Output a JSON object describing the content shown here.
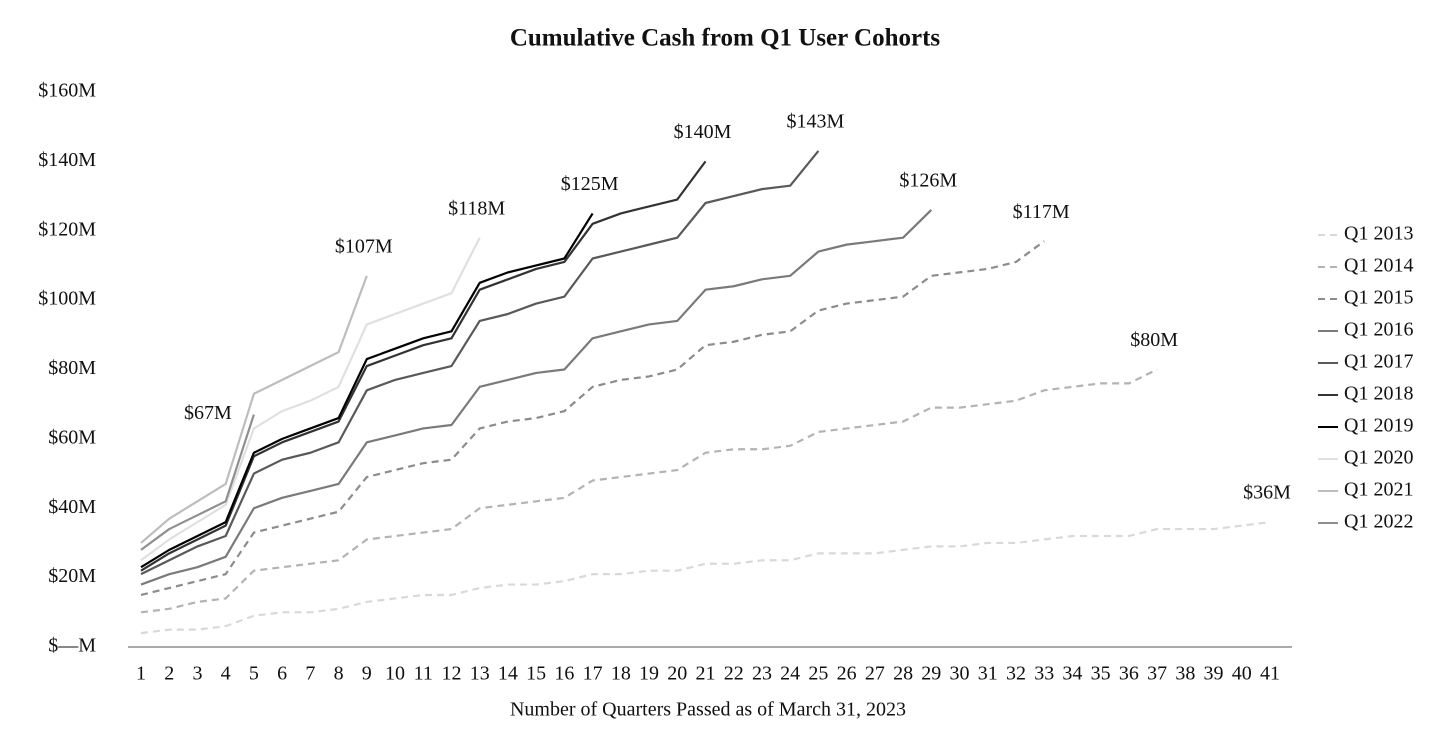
{
  "chart_data": {
    "type": "line",
    "title": "Cumulative Cash from Q1 User Cohorts",
    "x_label": "Number of Quarters Passed as of March 31, 2023",
    "x": [
      1,
      2,
      3,
      4,
      5,
      6,
      7,
      8,
      9,
      10,
      11,
      12,
      13,
      14,
      15,
      16,
      17,
      18,
      19,
      20,
      21,
      22,
      23,
      24,
      25,
      26,
      27,
      28,
      29,
      30,
      31,
      32,
      33,
      34,
      35,
      36,
      37,
      38,
      39,
      40,
      41
    ],
    "xlim": [
      1,
      41
    ],
    "ylim": [
      0,
      160
    ],
    "yticks": [
      {
        "value": 0,
        "label": "$—M"
      },
      {
        "value": 20,
        "label": "$20M"
      },
      {
        "value": 40,
        "label": "$40M"
      },
      {
        "value": 60,
        "label": "$60M"
      },
      {
        "value": 80,
        "label": "$80M"
      },
      {
        "value": 100,
        "label": "$100M"
      },
      {
        "value": 120,
        "label": "$120M"
      },
      {
        "value": 140,
        "label": "$140M"
      },
      {
        "value": 160,
        "label": "$160M"
      }
    ],
    "grid": false,
    "legend": "right",
    "series": [
      {
        "name": "Q1 2013",
        "color": "#d9d9d9",
        "dashed": true,
        "values": [
          4,
          5,
          5,
          6,
          9,
          10,
          10,
          11,
          13,
          14,
          15,
          15,
          17,
          18,
          18,
          19,
          21,
          21,
          22,
          22,
          24,
          24,
          25,
          25,
          27,
          27,
          27,
          28,
          29,
          29,
          30,
          30,
          31,
          32,
          32,
          32,
          34,
          34,
          34,
          35,
          36
        ],
        "value_labels": [
          null,
          null,
          null,
          null,
          null,
          null,
          null,
          null,
          null,
          null,
          null,
          null,
          null,
          null,
          null,
          null,
          null,
          null,
          null,
          null,
          null,
          null,
          null,
          null,
          null,
          null,
          null,
          null,
          null,
          null,
          null,
          null,
          null,
          null,
          null,
          null,
          null,
          null,
          null,
          null,
          "$36M"
        ]
      },
      {
        "name": "Q1 2014",
        "color": "#b3b3b3",
        "dashed": true,
        "values": [
          10,
          11,
          13,
          14,
          22,
          23,
          24,
          25,
          31,
          32,
          33,
          34,
          40,
          41,
          42,
          43,
          48,
          49,
          50,
          51,
          56,
          57,
          57,
          58,
          62,
          63,
          64,
          65,
          69,
          69,
          70,
          71,
          74,
          75,
          76,
          76,
          80,
          null,
          null,
          null,
          null
        ],
        "value_labels": [
          null,
          null,
          null,
          null,
          null,
          null,
          null,
          null,
          null,
          null,
          null,
          null,
          null,
          null,
          null,
          null,
          null,
          null,
          null,
          null,
          null,
          null,
          null,
          null,
          null,
          null,
          null,
          null,
          null,
          null,
          null,
          null,
          null,
          null,
          null,
          null,
          "$80M",
          null,
          null,
          null,
          null
        ]
      },
      {
        "name": "Q1 2015",
        "color": "#8c8c8c",
        "dashed": true,
        "values": [
          15,
          17,
          19,
          21,
          33,
          35,
          37,
          39,
          49,
          51,
          53,
          54,
          63,
          65,
          66,
          68,
          75,
          77,
          78,
          80,
          87,
          88,
          90,
          91,
          97,
          99,
          100,
          101,
          107,
          108,
          109,
          111,
          117,
          null,
          null,
          null,
          null,
          null,
          null,
          null,
          null
        ],
        "value_labels": [
          null,
          null,
          null,
          null,
          null,
          null,
          null,
          null,
          null,
          null,
          null,
          null,
          null,
          null,
          null,
          null,
          null,
          null,
          null,
          null,
          null,
          null,
          null,
          null,
          null,
          null,
          null,
          null,
          null,
          null,
          null,
          null,
          "$117M",
          null,
          null,
          null,
          null,
          null,
          null,
          null,
          null
        ]
      },
      {
        "name": "Q1 2016",
        "color": "#7a7a7a",
        "dashed": false,
        "values": [
          18,
          21,
          23,
          26,
          40,
          43,
          45,
          47,
          59,
          61,
          63,
          64,
          75,
          77,
          79,
          80,
          89,
          91,
          93,
          94,
          103,
          104,
          106,
          107,
          114,
          116,
          117,
          118,
          126,
          null,
          null,
          null,
          null,
          null,
          null,
          null,
          null,
          null,
          null,
          null,
          null
        ],
        "value_labels": [
          null,
          null,
          null,
          null,
          null,
          null,
          null,
          null,
          null,
          null,
          null,
          null,
          null,
          null,
          null,
          null,
          null,
          null,
          null,
          null,
          null,
          null,
          null,
          null,
          null,
          null,
          null,
          null,
          "$126M",
          null,
          null,
          null,
          null,
          null,
          null,
          null,
          null,
          null,
          null,
          null,
          null
        ]
      },
      {
        "name": "Q1 2017",
        "color": "#595959",
        "dashed": false,
        "values": [
          21,
          25,
          29,
          32,
          50,
          54,
          56,
          59,
          74,
          77,
          79,
          81,
          94,
          96,
          99,
          101,
          112,
          114,
          116,
          118,
          128,
          130,
          132,
          133,
          143,
          null,
          null,
          null,
          null,
          null,
          null,
          null,
          null,
          null,
          null,
          null,
          null,
          null,
          null,
          null,
          null
        ],
        "value_labels": [
          null,
          null,
          null,
          null,
          null,
          null,
          null,
          null,
          null,
          null,
          null,
          null,
          null,
          null,
          null,
          null,
          null,
          null,
          null,
          null,
          null,
          null,
          null,
          null,
          "$143M",
          null,
          null,
          null,
          null,
          null,
          null,
          null,
          null,
          null,
          null,
          null,
          null,
          null,
          null,
          null,
          null
        ]
      },
      {
        "name": "Q1 2018",
        "color": "#333333",
        "dashed": false,
        "values": [
          22,
          27,
          31,
          35,
          55,
          59,
          62,
          65,
          81,
          84,
          87,
          89,
          103,
          106,
          109,
          111,
          122,
          125,
          127,
          129,
          140,
          null,
          null,
          null,
          null,
          null,
          null,
          null,
          null,
          null,
          null,
          null,
          null,
          null,
          null,
          null,
          null,
          null,
          null,
          null,
          null
        ],
        "value_labels": [
          null,
          null,
          null,
          null,
          null,
          null,
          null,
          null,
          null,
          null,
          null,
          null,
          null,
          null,
          null,
          null,
          null,
          null,
          null,
          null,
          "$140M",
          null,
          null,
          null,
          null,
          null,
          null,
          null,
          null,
          null,
          null,
          null,
          null,
          null,
          null,
          null,
          null,
          null,
          null,
          null,
          null
        ]
      },
      {
        "name": "Q1 2019",
        "color": "#000000",
        "dashed": false,
        "values": [
          23,
          28,
          32,
          36,
          56,
          60,
          63,
          66,
          83,
          86,
          89,
          91,
          105,
          108,
          110,
          112,
          125,
          null,
          null,
          null,
          null,
          null,
          null,
          null,
          null,
          null,
          null,
          null,
          null,
          null,
          null,
          null,
          null,
          null,
          null,
          null,
          null,
          null,
          null,
          null,
          null
        ],
        "value_labels": [
          null,
          null,
          null,
          null,
          null,
          null,
          null,
          null,
          null,
          null,
          null,
          null,
          null,
          null,
          null,
          null,
          "$125M",
          null,
          null,
          null,
          null,
          null,
          null,
          null,
          null,
          null,
          null,
          null,
          null,
          null,
          null,
          null,
          null,
          null,
          null,
          null,
          null,
          null,
          null,
          null,
          null
        ]
      },
      {
        "name": "Q1 2020",
        "color": "#e0e0e0",
        "dashed": false,
        "values": [
          25,
          31,
          36,
          41,
          63,
          68,
          71,
          75,
          93,
          96,
          99,
          102,
          118,
          null,
          null,
          null,
          null,
          null,
          null,
          null,
          null,
          null,
          null,
          null,
          null,
          null,
          null,
          null,
          null,
          null,
          null,
          null,
          null,
          null,
          null,
          null,
          null,
          null,
          null,
          null,
          null
        ],
        "value_labels": [
          null,
          null,
          null,
          null,
          null,
          null,
          null,
          null,
          null,
          null,
          null,
          null,
          "$118M",
          null,
          null,
          null,
          null,
          null,
          null,
          null,
          null,
          null,
          null,
          null,
          null,
          null,
          null,
          null,
          null,
          null,
          null,
          null,
          null,
          null,
          null,
          null,
          null,
          null,
          null,
          null,
          null
        ]
      },
      {
        "name": "Q1 2021",
        "color": "#bdbdbd",
        "dashed": false,
        "values": [
          30,
          37,
          42,
          47,
          73,
          77,
          81,
          85,
          107,
          null,
          null,
          null,
          null,
          null,
          null,
          null,
          null,
          null,
          null,
          null,
          null,
          null,
          null,
          null,
          null,
          null,
          null,
          null,
          null,
          null,
          null,
          null,
          null,
          null,
          null,
          null,
          null,
          null,
          null,
          null,
          null
        ],
        "value_labels": [
          null,
          null,
          null,
          null,
          null,
          null,
          null,
          null,
          "$107M",
          null,
          null,
          null,
          null,
          null,
          null,
          null,
          null,
          null,
          null,
          null,
          null,
          null,
          null,
          null,
          null,
          null,
          null,
          null,
          null,
          null,
          null,
          null,
          null,
          null,
          null,
          null,
          null,
          null,
          null,
          null,
          null
        ]
      },
      {
        "name": "Q1 2022",
        "color": "#8f8f8f",
        "dashed": false,
        "values": [
          28,
          34,
          38,
          42,
          67,
          null,
          null,
          null,
          null,
          null,
          null,
          null,
          null,
          null,
          null,
          null,
          null,
          null,
          null,
          null,
          null,
          null,
          null,
          null,
          null,
          null,
          null,
          null,
          null,
          null,
          null,
          null,
          null,
          null,
          null,
          null,
          null,
          null,
          null,
          null,
          null
        ],
        "value_labels": [
          null,
          null,
          null,
          null,
          "$67M",
          null,
          null,
          null,
          null,
          null,
          null,
          null,
          null,
          null,
          null,
          null,
          null,
          null,
          null,
          null,
          null,
          null,
          null,
          null,
          null,
          null,
          null,
          null,
          null,
          null,
          null,
          null,
          null,
          null,
          null,
          null,
          null,
          null,
          null,
          null,
          null
        ]
      }
    ]
  }
}
